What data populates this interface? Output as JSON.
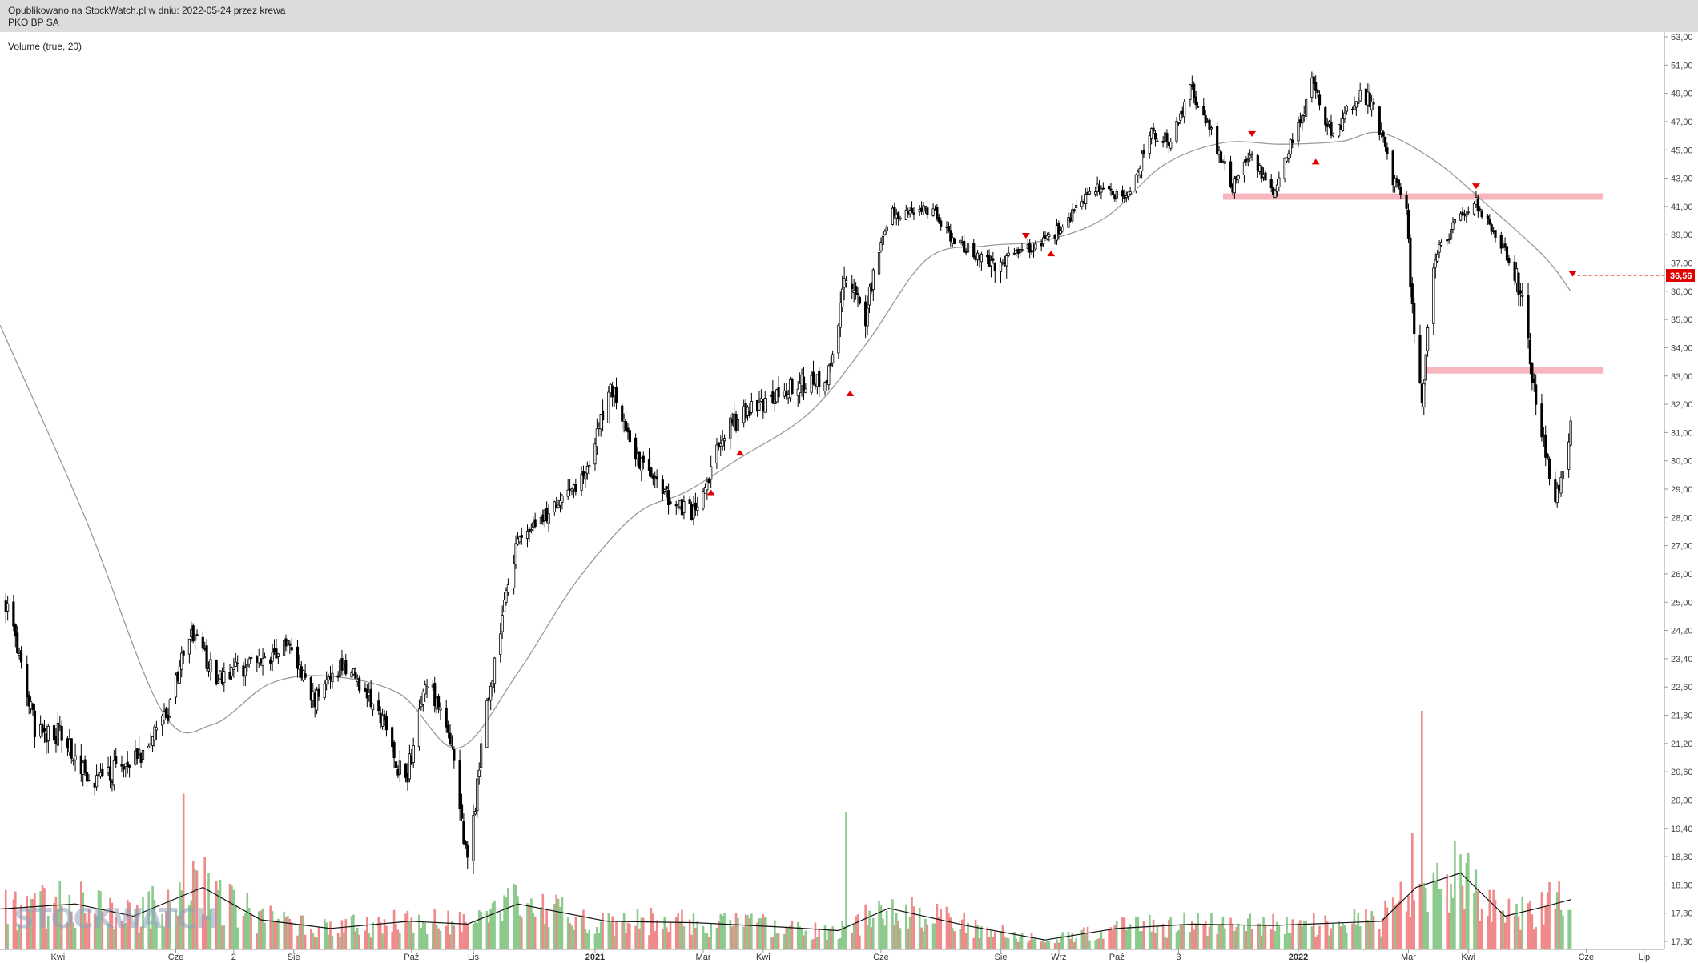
{
  "header": {
    "published_line": "Opublikowano na StockWatch.pl w dniu: 2022-05-24 przez krewa",
    "instrument": "PKO BP SA"
  },
  "volume_label": "Volume (true, 20)",
  "watermark": "STOCKWATCH",
  "colors": {
    "header_bg": "#dcdcdc",
    "candle": "#000000",
    "ma_line": "#9a9a9a",
    "vol_up": "#8cc98c",
    "vol_down": "#f08a8a",
    "resistance_zone": "#f7b6be",
    "marker": "#e00000",
    "price_tag_bg": "#e00000"
  },
  "chart_data": {
    "type": "candlestick",
    "title": "PKO BP SA",
    "y_axis": {
      "position": "right",
      "min": 17.3,
      "max": 53.0,
      "ticks": [
        "53,00",
        "51,00",
        "49,00",
        "47,00",
        "45,00",
        "43,00",
        "41,00",
        "39,00",
        "37,00",
        "36,00",
        "35,00",
        "34,00",
        "33,00",
        "32,00",
        "31,00",
        "30,00",
        "29,00",
        "28,00",
        "27,00",
        "26,00",
        "25,00",
        "24,20",
        "23,40",
        "22,60",
        "21,80",
        "21,20",
        "20,60",
        "20,00",
        "19,40",
        "18,80",
        "18,30",
        "17,80",
        "17,30"
      ]
    },
    "x_axis": {
      "ticks": [
        {
          "label": "Kwi",
          "date": "2020-04-01",
          "bold": false
        },
        {
          "label": "Cze",
          "date": "2020-06-01",
          "bold": false
        },
        {
          "label": "2",
          "date": "2020-07-01",
          "bold": false
        },
        {
          "label": "Sie",
          "date": "2020-08-01",
          "bold": false
        },
        {
          "label": "Paź",
          "date": "2020-10-01",
          "bold": false
        },
        {
          "label": "Lis",
          "date": "2020-11-02",
          "bold": false
        },
        {
          "label": "2021",
          "date": "2021-01-04",
          "bold": true
        },
        {
          "label": "Mar",
          "date": "2021-03-01",
          "bold": false
        },
        {
          "label": "Kwi",
          "date": "2021-04-01",
          "bold": false
        },
        {
          "label": "Cze",
          "date": "2021-06-01",
          "bold": false
        },
        {
          "label": "Sie",
          "date": "2021-08-02",
          "bold": false
        },
        {
          "label": "Wrz",
          "date": "2021-09-01",
          "bold": false
        },
        {
          "label": "Paź",
          "date": "2021-10-01",
          "bold": false
        },
        {
          "label": "3",
          "date": "2021-11-02",
          "bold": false
        },
        {
          "label": "2022",
          "date": "2022-01-03",
          "bold": true
        },
        {
          "label": "Mar",
          "date": "2022-03-01",
          "bold": false
        },
        {
          "label": "Kwi",
          "date": "2022-04-01",
          "bold": false
        },
        {
          "label": "Cze",
          "date": "2022-06-01",
          "bold": false
        },
        {
          "label": "Lip",
          "date": "2022-07-01",
          "bold": false
        }
      ]
    },
    "price_path": [
      {
        "date": "2020-03-05",
        "close": 25.0
      },
      {
        "date": "2020-03-20",
        "close": 21.5
      },
      {
        "date": "2020-04-01",
        "close": 21.4
      },
      {
        "date": "2020-04-20",
        "close": 20.4
      },
      {
        "date": "2020-05-12",
        "close": 20.9
      },
      {
        "date": "2020-05-28",
        "close": 21.9
      },
      {
        "date": "2020-06-08",
        "close": 24.2
      },
      {
        "date": "2020-06-22",
        "close": 22.9
      },
      {
        "date": "2020-07-15",
        "close": 23.3
      },
      {
        "date": "2020-07-28",
        "close": 23.9
      },
      {
        "date": "2020-08-12",
        "close": 22.2
      },
      {
        "date": "2020-08-27",
        "close": 23.3
      },
      {
        "date": "2020-09-15",
        "close": 21.7
      },
      {
        "date": "2020-09-28",
        "close": 20.3
      },
      {
        "date": "2020-10-09",
        "close": 22.8
      },
      {
        "date": "2020-10-22",
        "close": 21.2
      },
      {
        "date": "2020-10-30",
        "close": 18.6
      },
      {
        "date": "2020-11-09",
        "close": 22.0
      },
      {
        "date": "2020-11-24",
        "close": 27.0
      },
      {
        "date": "2020-12-14",
        "close": 28.3
      },
      {
        "date": "2020-12-30",
        "close": 29.5
      },
      {
        "date": "2021-01-12",
        "close": 32.6
      },
      {
        "date": "2021-01-28",
        "close": 29.8
      },
      {
        "date": "2021-02-12",
        "close": 28.6
      },
      {
        "date": "2021-02-25",
        "close": 28.1
      },
      {
        "date": "2021-03-12",
        "close": 31.0
      },
      {
        "date": "2021-03-26",
        "close": 31.9
      },
      {
        "date": "2021-04-15",
        "close": 32.6
      },
      {
        "date": "2021-05-04",
        "close": 32.9
      },
      {
        "date": "2021-05-14",
        "close": 36.5
      },
      {
        "date": "2021-05-24",
        "close": 35.0
      },
      {
        "date": "2021-06-07",
        "close": 40.5
      },
      {
        "date": "2021-06-28",
        "close": 40.8
      },
      {
        "date": "2021-07-09",
        "close": 38.5
      },
      {
        "date": "2021-07-28",
        "close": 37.0
      },
      {
        "date": "2021-08-12",
        "close": 37.8
      },
      {
        "date": "2021-08-27",
        "close": 38.6
      },
      {
        "date": "2021-09-10",
        "close": 40.8
      },
      {
        "date": "2021-09-23",
        "close": 42.4
      },
      {
        "date": "2021-10-06",
        "close": 41.6
      },
      {
        "date": "2021-10-19",
        "close": 46.2
      },
      {
        "date": "2021-10-29",
        "close": 45.6
      },
      {
        "date": "2021-11-08",
        "close": 49.5
      },
      {
        "date": "2021-11-18",
        "close": 46.4
      },
      {
        "date": "2021-11-30",
        "close": 42.4
      },
      {
        "date": "2021-12-09",
        "close": 44.9
      },
      {
        "date": "2021-12-21",
        "close": 41.8
      },
      {
        "date": "2022-01-10",
        "close": 49.6
      },
      {
        "date": "2022-01-21",
        "close": 45.9
      },
      {
        "date": "2022-02-02",
        "close": 48.8
      },
      {
        "date": "2022-02-10",
        "close": 48.5
      },
      {
        "date": "2022-02-21",
        "close": 43.0
      },
      {
        "date": "2022-02-28",
        "close": 41.0
      },
      {
        "date": "2022-03-02",
        "close": 36.0
      },
      {
        "date": "2022-03-08",
        "close": 32.0
      },
      {
        "date": "2022-03-15",
        "close": 37.5
      },
      {
        "date": "2022-03-24",
        "close": 39.5
      },
      {
        "date": "2022-04-04",
        "close": 41.5
      },
      {
        "date": "2022-04-14",
        "close": 39.0
      },
      {
        "date": "2022-04-28",
        "close": 36.0
      },
      {
        "date": "2022-05-06",
        "close": 32.0
      },
      {
        "date": "2022-05-16",
        "close": 28.6
      },
      {
        "date": "2022-05-24",
        "close": 31.2
      }
    ],
    "moving_average": [
      {
        "date": "2020-03-02",
        "value": 34.8
      },
      {
        "date": "2020-04-15",
        "value": 28.0
      },
      {
        "date": "2020-05-25",
        "value": 21.9
      },
      {
        "date": "2020-06-20",
        "value": 21.6
      },
      {
        "date": "2020-07-20",
        "value": 22.7
      },
      {
        "date": "2020-08-20",
        "value": 22.9
      },
      {
        "date": "2020-09-25",
        "value": 22.4
      },
      {
        "date": "2020-10-25",
        "value": 21.1
      },
      {
        "date": "2020-11-25",
        "value": 23.0
      },
      {
        "date": "2020-12-25",
        "value": 25.7
      },
      {
        "date": "2021-01-25",
        "value": 28.1
      },
      {
        "date": "2021-02-20",
        "value": 28.9
      },
      {
        "date": "2021-03-20",
        "value": 30.1
      },
      {
        "date": "2021-04-25",
        "value": 31.7
      },
      {
        "date": "2021-05-25",
        "value": 34.2
      },
      {
        "date": "2021-06-25",
        "value": 37.3
      },
      {
        "date": "2021-07-25",
        "value": 38.2
      },
      {
        "date": "2021-08-25",
        "value": 38.6
      },
      {
        "date": "2021-09-25",
        "value": 40.2
      },
      {
        "date": "2021-10-25",
        "value": 43.9
      },
      {
        "date": "2021-11-25",
        "value": 45.5
      },
      {
        "date": "2021-12-25",
        "value": 45.4
      },
      {
        "date": "2022-01-25",
        "value": 45.6
      },
      {
        "date": "2022-02-15",
        "value": 46.2
      },
      {
        "date": "2022-03-15",
        "value": 44.2
      },
      {
        "date": "2022-04-10",
        "value": 41.2
      },
      {
        "date": "2022-05-10",
        "value": 37.5
      },
      {
        "date": "2022-05-24",
        "value": 36.0
      }
    ],
    "volume_ma": [
      {
        "date": "2020-03-02",
        "value": 0.55
      },
      {
        "date": "2020-04-10",
        "value": 0.62
      },
      {
        "date": "2020-05-10",
        "value": 0.45
      },
      {
        "date": "2020-06-15",
        "value": 0.85
      },
      {
        "date": "2020-07-15",
        "value": 0.4
      },
      {
        "date": "2020-08-20",
        "value": 0.28
      },
      {
        "date": "2020-09-30",
        "value": 0.38
      },
      {
        "date": "2020-10-30",
        "value": 0.34
      },
      {
        "date": "2020-11-25",
        "value": 0.62
      },
      {
        "date": "2021-01-10",
        "value": 0.38
      },
      {
        "date": "2021-02-25",
        "value": 0.36
      },
      {
        "date": "2021-04-10",
        "value": 0.3
      },
      {
        "date": "2021-05-10",
        "value": 0.25
      },
      {
        "date": "2021-06-05",
        "value": 0.56
      },
      {
        "date": "2021-07-15",
        "value": 0.32
      },
      {
        "date": "2021-08-25",
        "value": 0.12
      },
      {
        "date": "2021-10-01",
        "value": 0.28
      },
      {
        "date": "2021-11-10",
        "value": 0.34
      },
      {
        "date": "2021-12-20",
        "value": 0.32
      },
      {
        "date": "2022-02-15",
        "value": 0.38
      },
      {
        "date": "2022-03-05",
        "value": 0.85
      },
      {
        "date": "2022-03-28",
        "value": 1.05
      },
      {
        "date": "2022-04-20",
        "value": 0.45
      },
      {
        "date": "2022-05-10",
        "value": 0.58
      },
      {
        "date": "2022-05-24",
        "value": 0.68
      }
    ],
    "volume_spikes": [
      {
        "date": "2020-06-05",
        "value": 2.15
      },
      {
        "date": "2021-05-14",
        "value": 1.9
      },
      {
        "date": "2022-03-08",
        "value": 3.3
      },
      {
        "date": "2022-03-03",
        "value": 1.6
      }
    ],
    "horizontal_zones": [
      {
        "price": 41.7,
        "from": "2021-11-25",
        "to": "2022-06-10"
      },
      {
        "price": 33.2,
        "from": "2022-03-10",
        "to": "2022-06-10"
      }
    ],
    "markers": [
      {
        "date": "2021-03-05",
        "price": 28.9,
        "direction": "up"
      },
      {
        "date": "2021-03-20",
        "price": 30.3,
        "direction": "up"
      },
      {
        "date": "2021-05-16",
        "price": 32.4,
        "direction": "up"
      },
      {
        "date": "2021-08-15",
        "price": 38.9,
        "direction": "down"
      },
      {
        "date": "2021-08-28",
        "price": 37.7,
        "direction": "up"
      },
      {
        "date": "2021-12-10",
        "price": 46.1,
        "direction": "down"
      },
      {
        "date": "2022-01-12",
        "price": 44.2,
        "direction": "up"
      },
      {
        "date": "2022-04-05",
        "price": 42.4,
        "direction": "down"
      },
      {
        "date": "2022-05-25",
        "price": 36.6,
        "direction": "down"
      }
    ],
    "last_price": {
      "label": "36,56",
      "value": 36.56
    }
  }
}
